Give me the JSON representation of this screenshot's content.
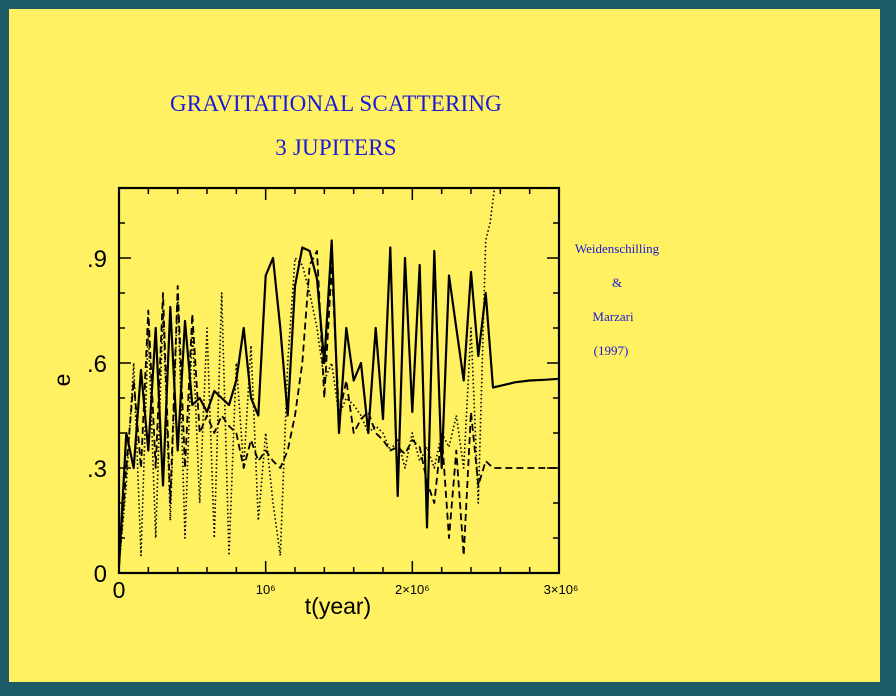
{
  "slide": {
    "title_line1": "GRAVITATIONAL SCATTERING",
    "title_line2": "3  JUPITERS",
    "credit": {
      "line1": "Weidenschilling",
      "line2": "&",
      "line3": "Marzari",
      "line4": "(1997)"
    },
    "colors": {
      "background": "#fff162",
      "frame": "#1d5b66",
      "title": "#1a1ad6",
      "ink": "#000000"
    }
  },
  "chart_data": {
    "type": "line",
    "title": "",
    "xlabel": "t(year)",
    "ylabel": "e",
    "xlim": [
      0,
      3000000
    ],
    "ylim": [
      0,
      1.1
    ],
    "x_ticks": [
      {
        "value": 0,
        "label": "0"
      },
      {
        "value": 1000000,
        "label": "10⁶"
      },
      {
        "value": 2000000,
        "label": "2×10⁶"
      },
      {
        "value": 3000000,
        "label": "3×10⁶"
      }
    ],
    "y_ticks": [
      {
        "value": 0,
        "label": "0"
      },
      {
        "value": 0.3,
        "label": ".3"
      },
      {
        "value": 0.6,
        "label": ".6"
      },
      {
        "value": 0.9,
        "label": ".9"
      }
    ],
    "grid": false,
    "legend": "none",
    "series": [
      {
        "style": "solid",
        "x": [
          0,
          50000,
          100000,
          150000,
          200000,
          250000,
          300000,
          350000,
          400000,
          450000,
          500000,
          550000,
          600000,
          650000,
          700000,
          750000,
          800000,
          850000,
          900000,
          950000,
          1000000,
          1050000,
          1100000,
          1150000,
          1200000,
          1250000,
          1300000,
          1350000,
          1400000,
          1450000,
          1500000,
          1550000,
          1600000,
          1650000,
          1700000,
          1750000,
          1800000,
          1850000,
          1900000,
          1950000,
          2000000,
          2050000,
          2100000,
          2150000,
          2200000,
          2250000,
          2300000,
          2350000,
          2400000,
          2450000,
          2500000,
          2550000,
          2600000,
          2700000,
          2800000,
          2900000,
          3000000
        ],
        "y": [
          0.02,
          0.4,
          0.3,
          0.58,
          0.35,
          0.7,
          0.25,
          0.76,
          0.35,
          0.72,
          0.48,
          0.5,
          0.46,
          0.52,
          0.5,
          0.48,
          0.55,
          0.7,
          0.5,
          0.45,
          0.85,
          0.9,
          0.7,
          0.45,
          0.82,
          0.93,
          0.92,
          0.84,
          0.6,
          0.95,
          0.4,
          0.7,
          0.55,
          0.6,
          0.4,
          0.7,
          0.44,
          0.93,
          0.22,
          0.9,
          0.46,
          0.88,
          0.13,
          0.92,
          0.3,
          0.85,
          0.7,
          0.55,
          0.86,
          0.62,
          0.8,
          0.53,
          0.535,
          0.545,
          0.55,
          0.552,
          0.555
        ]
      },
      {
        "style": "dashed",
        "x": [
          0,
          50000,
          100000,
          150000,
          200000,
          250000,
          300000,
          350000,
          400000,
          450000,
          500000,
          550000,
          600000,
          650000,
          700000,
          750000,
          800000,
          850000,
          900000,
          950000,
          1000000,
          1050000,
          1100000,
          1150000,
          1200000,
          1250000,
          1300000,
          1350000,
          1400000,
          1450000,
          1500000,
          1550000,
          1600000,
          1650000,
          1700000,
          1750000,
          1800000,
          1850000,
          1900000,
          1950000,
          2000000,
          2050000,
          2100000,
          2150000,
          2200000,
          2250000,
          2300000,
          2350000,
          2400000,
          2450000,
          2500000,
          2550000,
          2600000,
          2700000,
          2800000,
          2900000,
          3000000
        ],
        "y": [
          0.02,
          0.3,
          0.55,
          0.3,
          0.75,
          0.3,
          0.8,
          0.2,
          0.82,
          0.3,
          0.74,
          0.4,
          0.45,
          0.4,
          0.45,
          0.42,
          0.4,
          0.3,
          0.38,
          0.32,
          0.35,
          0.32,
          0.3,
          0.35,
          0.45,
          0.6,
          0.88,
          0.92,
          0.5,
          0.88,
          0.45,
          0.55,
          0.4,
          0.44,
          0.46,
          0.4,
          0.38,
          0.35,
          0.36,
          0.34,
          0.38,
          0.36,
          0.26,
          0.2,
          0.4,
          0.1,
          0.35,
          0.05,
          0.46,
          0.25,
          0.32,
          0.3,
          0.3,
          0.3,
          0.3,
          0.3,
          0.3
        ]
      },
      {
        "style": "dotted",
        "x": [
          0,
          50000,
          100000,
          150000,
          200000,
          250000,
          300000,
          350000,
          400000,
          450000,
          500000,
          550000,
          600000,
          650000,
          700000,
          750000,
          800000,
          850000,
          900000,
          950000,
          1000000,
          1050000,
          1100000,
          1150000,
          1200000,
          1250000,
          1300000,
          1350000,
          1400000,
          1450000,
          1500000,
          1550000,
          1600000,
          1650000,
          1700000,
          1750000,
          1800000,
          1850000,
          1900000,
          1950000,
          2000000,
          2050000,
          2100000,
          2150000,
          2200000,
          2250000,
          2300000,
          2350000,
          2400000,
          2450000,
          2500000,
          2530000,
          2560000
        ],
        "y": [
          0.02,
          0.25,
          0.6,
          0.05,
          0.7,
          0.1,
          0.75,
          0.15,
          0.8,
          0.1,
          0.7,
          0.2,
          0.7,
          0.1,
          0.8,
          0.05,
          0.6,
          0.3,
          0.65,
          0.15,
          0.4,
          0.2,
          0.05,
          0.6,
          0.9,
          0.88,
          0.8,
          0.7,
          0.55,
          0.6,
          0.45,
          0.5,
          0.48,
          0.45,
          0.4,
          0.42,
          0.4,
          0.35,
          0.38,
          0.3,
          0.4,
          0.32,
          0.36,
          0.3,
          0.4,
          0.36,
          0.45,
          0.3,
          0.7,
          0.2,
          0.95,
          1.0,
          1.1
        ]
      }
    ]
  }
}
